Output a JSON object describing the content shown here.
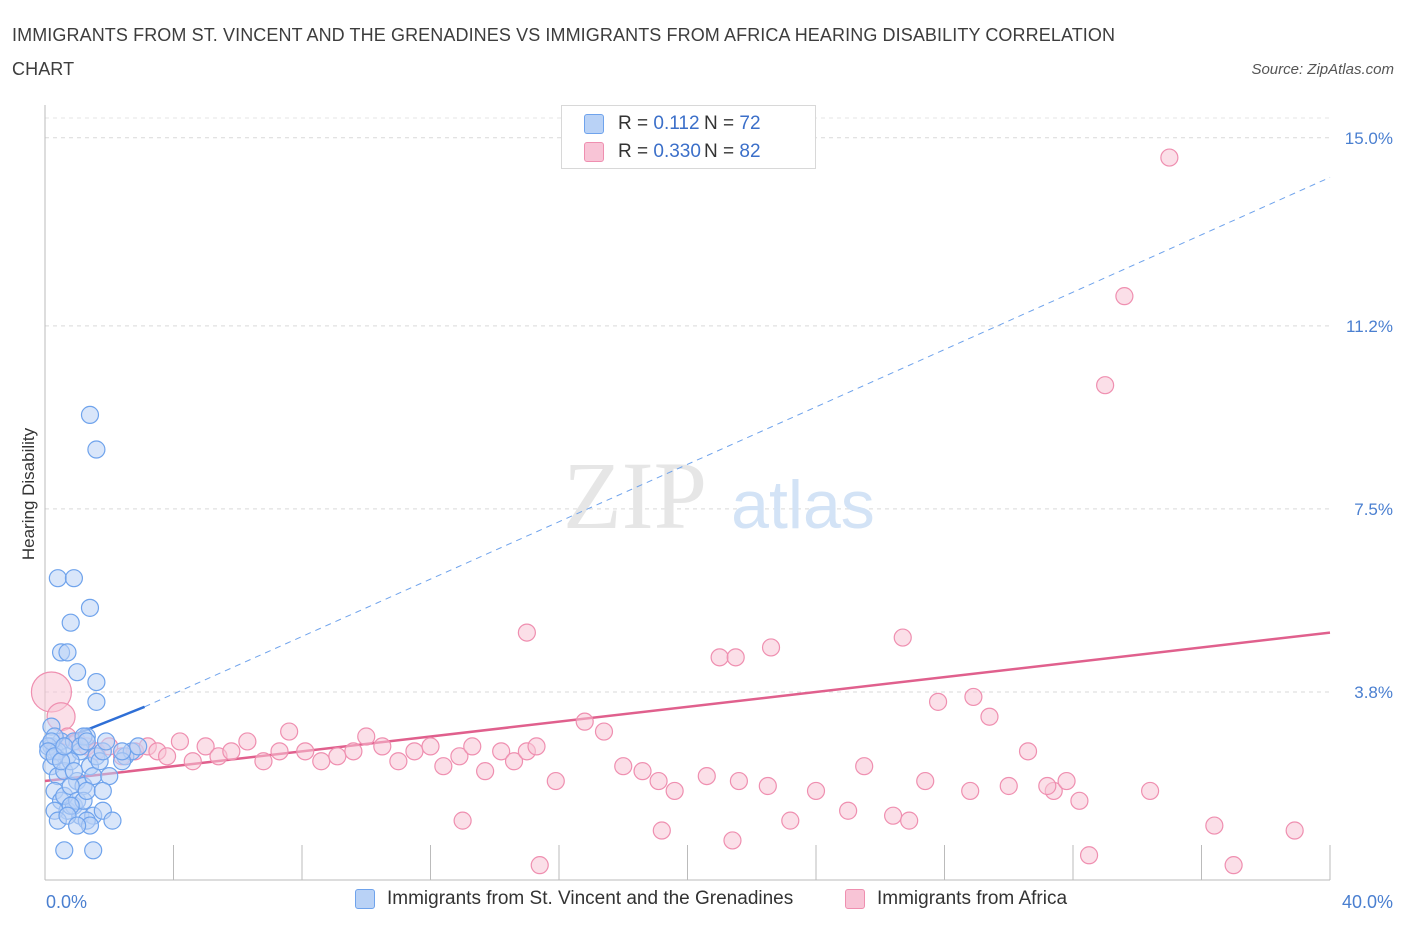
{
  "title": "IMMIGRANTS FROM ST. VINCENT AND THE GRENADINES VS IMMIGRANTS FROM AFRICA HEARING DISABILITY CORRELATION CHART",
  "source": "Source: ZipAtlas.com",
  "watermark": {
    "zip": "ZIP",
    "atlas": "atlas"
  },
  "colors": {
    "blue": "#6fa3ec",
    "blue_fill": "#b9d2f6",
    "blue_line": "#2f6fd6",
    "pink": "#ef8fb0",
    "pink_fill": "#f8c4d6",
    "pink_line": "#e0608d",
    "axis_text": "#4a7fd0"
  },
  "legend": {
    "series1": {
      "r_label": "R = ",
      "r_value": "0.112",
      "n_label": "N = ",
      "n_value": "72"
    },
    "series2": {
      "r_label": "R = ",
      "r_value": "0.330",
      "n_label": "N = ",
      "n_value": "82"
    }
  },
  "chart_data": {
    "type": "scatter",
    "ylabel": "Hearing Disability",
    "xlim": [
      0,
      40
    ],
    "ylim": [
      0,
      15.4
    ],
    "x_tick_labels": {
      "left": "0.0%",
      "right": "40.0%"
    },
    "y_ticks": [
      {
        "value": 3.8,
        "label": "3.8%"
      },
      {
        "value": 7.5,
        "label": "7.5%"
      },
      {
        "value": 11.2,
        "label": "11.2%"
      },
      {
        "value": 15.0,
        "label": "15.0%"
      }
    ],
    "grid": "horizontal dashed",
    "series": [
      {
        "name": "Immigrants from St. Vincent and the Grenadines",
        "color": "#6fa3ec",
        "trend": {
          "solid": [
            [
              0,
              2.7
            ],
            [
              3.1,
              3.5
            ]
          ],
          "dashed_to": [
            40,
            14.2
          ]
        },
        "points": [
          [
            0.2,
            2.7
          ],
          [
            0.3,
            2.6
          ],
          [
            0.5,
            2.8
          ],
          [
            0.7,
            2.5
          ],
          [
            0.9,
            2.8
          ],
          [
            1.1,
            2.6
          ],
          [
            1.3,
            2.9
          ],
          [
            0.2,
            2.3
          ],
          [
            0.4,
            2.1
          ],
          [
            0.6,
            2.2
          ],
          [
            0.8,
            2.4
          ],
          [
            1.0,
            2.0
          ],
          [
            1.2,
            1.9
          ],
          [
            1.4,
            2.3
          ],
          [
            1.6,
            2.5
          ],
          [
            0.3,
            1.8
          ],
          [
            0.5,
            1.6
          ],
          [
            0.7,
            1.4
          ],
          [
            0.9,
            1.5
          ],
          [
            1.1,
            1.3
          ],
          [
            0.3,
            1.4
          ],
          [
            0.6,
            1.7
          ],
          [
            0.8,
            1.9
          ],
          [
            1.5,
            1.3
          ],
          [
            1.8,
            1.4
          ],
          [
            2.1,
            1.2
          ],
          [
            1.3,
            1.2
          ],
          [
            1.4,
            1.1
          ],
          [
            1.0,
            1.6
          ],
          [
            1.2,
            1.6
          ],
          [
            1.5,
            2.1
          ],
          [
            1.7,
            2.4
          ],
          [
            2.0,
            2.1
          ],
          [
            1.8,
            2.6
          ],
          [
            2.5,
            2.5
          ],
          [
            2.7,
            2.6
          ],
          [
            2.4,
            2.4
          ],
          [
            2.9,
            2.7
          ],
          [
            0.6,
            0.6
          ],
          [
            1.5,
            0.6
          ],
          [
            0.4,
            6.1
          ],
          [
            0.9,
            6.1
          ],
          [
            0.8,
            5.2
          ],
          [
            1.4,
            5.5
          ],
          [
            0.5,
            4.6
          ],
          [
            0.7,
            4.6
          ],
          [
            1.0,
            4.2
          ],
          [
            1.6,
            4.0
          ],
          [
            1.6,
            3.6
          ],
          [
            1.4,
            9.4
          ],
          [
            1.6,
            8.7
          ],
          [
            1.2,
            2.9
          ],
          [
            0.2,
            3.1
          ],
          [
            0.3,
            2.9
          ],
          [
            0.1,
            2.7
          ],
          [
            0.4,
            2.6
          ],
          [
            0.2,
            2.8
          ],
          [
            0.1,
            2.6
          ],
          [
            0.3,
            2.5
          ],
          [
            0.5,
            2.4
          ],
          [
            0.6,
            2.7
          ],
          [
            0.9,
            2.2
          ],
          [
            1.1,
            2.7
          ],
          [
            1.3,
            2.8
          ],
          [
            1.9,
            2.8
          ],
          [
            0.8,
            1.5
          ],
          [
            1.3,
            1.8
          ],
          [
            1.8,
            1.8
          ],
          [
            0.4,
            1.2
          ],
          [
            0.7,
            1.3
          ],
          [
            1.0,
            1.1
          ],
          [
            2.4,
            2.6
          ]
        ]
      },
      {
        "name": "Immigrants from Africa",
        "color": "#ef8fb0",
        "trend": {
          "solid": [
            [
              0,
              2.0
            ],
            [
              40,
              5.0
            ]
          ]
        },
        "points": [
          [
            0.2,
            3.8
          ],
          [
            0.5,
            3.3
          ],
          [
            0.7,
            2.9
          ],
          [
            1.0,
            2.8
          ],
          [
            1.3,
            2.7
          ],
          [
            1.6,
            2.6
          ],
          [
            2.0,
            2.7
          ],
          [
            2.4,
            2.5
          ],
          [
            2.8,
            2.6
          ],
          [
            3.2,
            2.7
          ],
          [
            3.5,
            2.6
          ],
          [
            3.8,
            2.5
          ],
          [
            4.2,
            2.8
          ],
          [
            4.6,
            2.4
          ],
          [
            5.0,
            2.7
          ],
          [
            5.4,
            2.5
          ],
          [
            5.8,
            2.6
          ],
          [
            6.3,
            2.8
          ],
          [
            6.8,
            2.4
          ],
          [
            7.3,
            2.6
          ],
          [
            7.6,
            3.0
          ],
          [
            8.1,
            2.6
          ],
          [
            8.6,
            2.4
          ],
          [
            9.1,
            2.5
          ],
          [
            9.6,
            2.6
          ],
          [
            10.0,
            2.9
          ],
          [
            10.5,
            2.7
          ],
          [
            11.0,
            2.4
          ],
          [
            11.5,
            2.6
          ],
          [
            12.0,
            2.7
          ],
          [
            12.4,
            2.3
          ],
          [
            12.9,
            2.5
          ],
          [
            13.3,
            2.7
          ],
          [
            13.7,
            2.2
          ],
          [
            14.2,
            2.6
          ],
          [
            14.6,
            2.4
          ],
          [
            15.0,
            2.6
          ],
          [
            15.3,
            2.7
          ],
          [
            15.9,
            2.0
          ],
          [
            16.8,
            3.2
          ],
          [
            17.4,
            3.0
          ],
          [
            18.0,
            2.3
          ],
          [
            18.6,
            2.2
          ],
          [
            19.1,
            2.0
          ],
          [
            19.6,
            1.8
          ],
          [
            20.6,
            2.1
          ],
          [
            21.6,
            2.0
          ],
          [
            22.5,
            1.9
          ],
          [
            23.2,
            1.2
          ],
          [
            24.0,
            1.8
          ],
          [
            25.0,
            1.4
          ],
          [
            25.5,
            2.3
          ],
          [
            26.4,
            1.3
          ],
          [
            26.9,
            1.2
          ],
          [
            27.4,
            2.0
          ],
          [
            28.8,
            1.8
          ],
          [
            21.0,
            4.5
          ],
          [
            21.5,
            4.5
          ],
          [
            22.6,
            4.7
          ],
          [
            26.7,
            4.9
          ],
          [
            28.9,
            3.7
          ],
          [
            29.4,
            3.3
          ],
          [
            27.8,
            3.6
          ],
          [
            30.0,
            1.9
          ],
          [
            31.4,
            1.8
          ],
          [
            34.4,
            1.8
          ],
          [
            36.4,
            1.1
          ],
          [
            32.5,
            0.5
          ],
          [
            32.2,
            1.6
          ],
          [
            15.0,
            5.0
          ],
          [
            13.0,
            1.2
          ],
          [
            15.4,
            0.3
          ],
          [
            19.2,
            1.0
          ],
          [
            21.4,
            0.8
          ],
          [
            30.6,
            2.6
          ],
          [
            31.2,
            1.9
          ],
          [
            31.8,
            2.0
          ],
          [
            33.6,
            11.8
          ],
          [
            35.0,
            14.6
          ],
          [
            33.0,
            10.0
          ],
          [
            37.0,
            0.3
          ],
          [
            38.9,
            1.0
          ]
        ]
      }
    ]
  }
}
